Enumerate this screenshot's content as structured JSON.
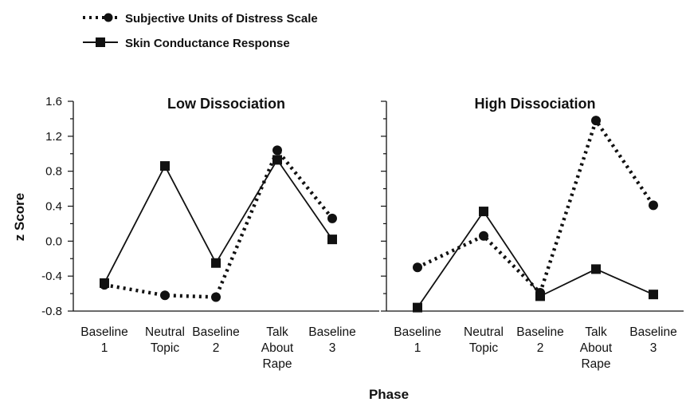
{
  "chart_data": {
    "type": "line",
    "xlabel": "Phase",
    "ylabel": "z Score",
    "ylim": [
      -0.8,
      1.6
    ],
    "yticks": [
      "1.6",
      "1.2",
      "0.8",
      "0.4",
      "0.0",
      "-0.4",
      "-0.8"
    ],
    "ytick_values": [
      1.6,
      1.2,
      0.8,
      0.4,
      0.0,
      -0.4,
      -0.8
    ],
    "categories": [
      [
        "Baseline",
        "1"
      ],
      [
        "Neutral",
        "Topic"
      ],
      [
        "Baseline",
        "2"
      ],
      [
        "Talk",
        "About",
        "Rape"
      ],
      [
        "Baseline",
        "3"
      ]
    ],
    "legend": {
      "placement": "top-left",
      "entries": [
        {
          "name": "Subjective Units of Distress Scale",
          "style": "dotted",
          "marker": "circle"
        },
        {
          "name": "Skin Conductance Response",
          "style": "solid",
          "marker": "square"
        }
      ]
    },
    "grid": false,
    "panels": [
      {
        "title": "Low Dissociation",
        "series": [
          {
            "name": "Subjective Units of Distress Scale",
            "values": [
              -0.5,
              -0.62,
              -0.64,
              1.04,
              0.26
            ]
          },
          {
            "name": "Skin Conductance Response",
            "values": [
              -0.48,
              0.86,
              -0.25,
              0.93,
              0.02
            ]
          }
        ]
      },
      {
        "title": "High Dissociation",
        "series": [
          {
            "name": "Subjective Units of Distress Scale",
            "values": [
              -0.3,
              0.06,
              -0.59,
              1.38,
              0.41
            ]
          },
          {
            "name": "Skin Conductance Response",
            "values": [
              -0.76,
              0.34,
              -0.63,
              -0.32,
              -0.61
            ]
          }
        ]
      }
    ],
    "colors": {
      "ink": "#111111"
    }
  }
}
